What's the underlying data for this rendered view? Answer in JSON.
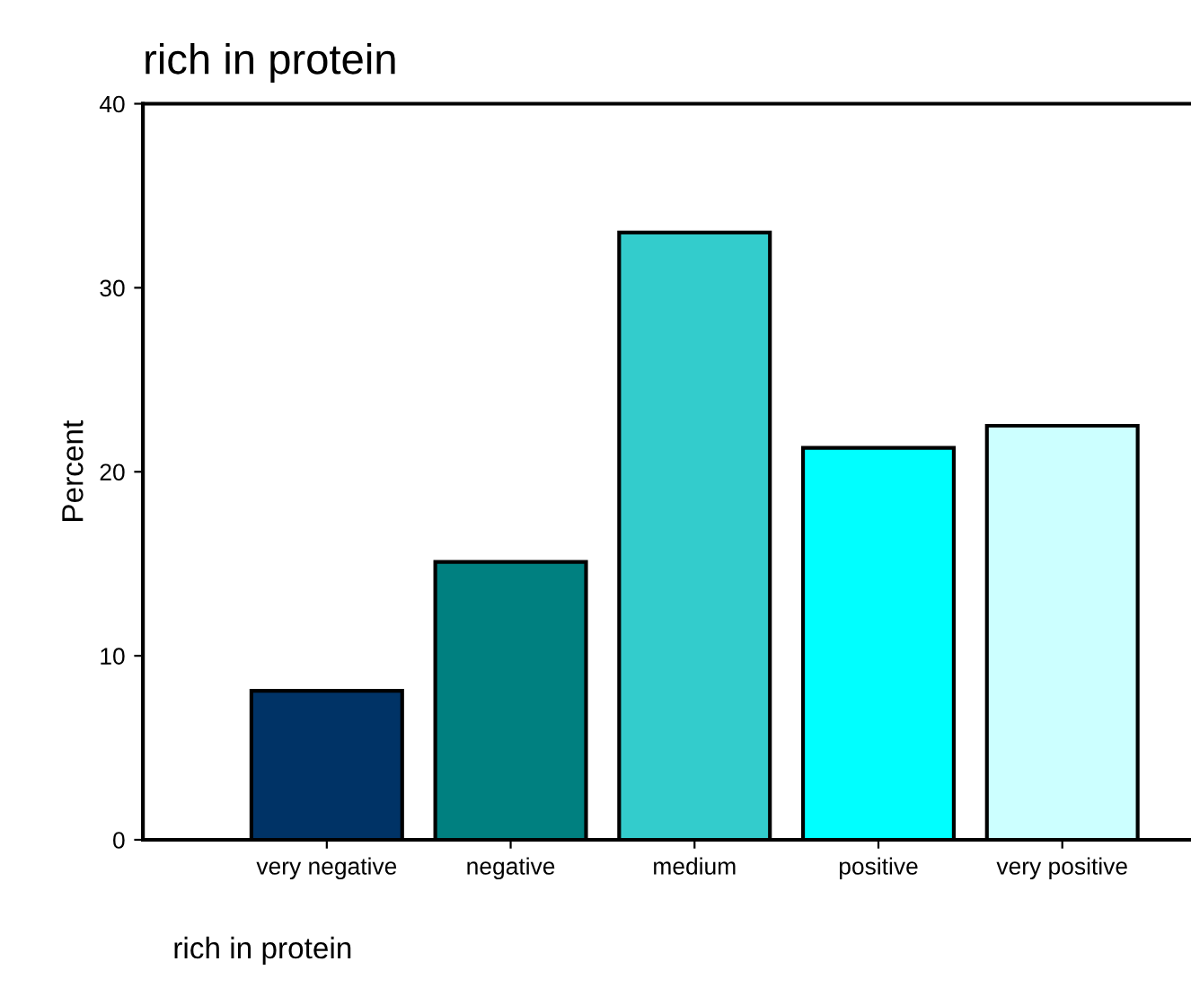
{
  "chart_data": {
    "type": "bar",
    "title": "rich in protein",
    "xlabel": "rich in protein",
    "ylabel": "Percent",
    "categories": [
      "very negative",
      "negative",
      "medium",
      "positive",
      "very positive"
    ],
    "values": [
      8.1,
      15.1,
      33.0,
      21.3,
      22.5
    ],
    "colors": [
      "#003366",
      "#008080",
      "#33cccc",
      "#00ffff",
      "#ccffff"
    ],
    "ylim": [
      0,
      40
    ],
    "yticks": [
      0,
      10,
      20,
      30,
      40
    ],
    "grid": false
  }
}
